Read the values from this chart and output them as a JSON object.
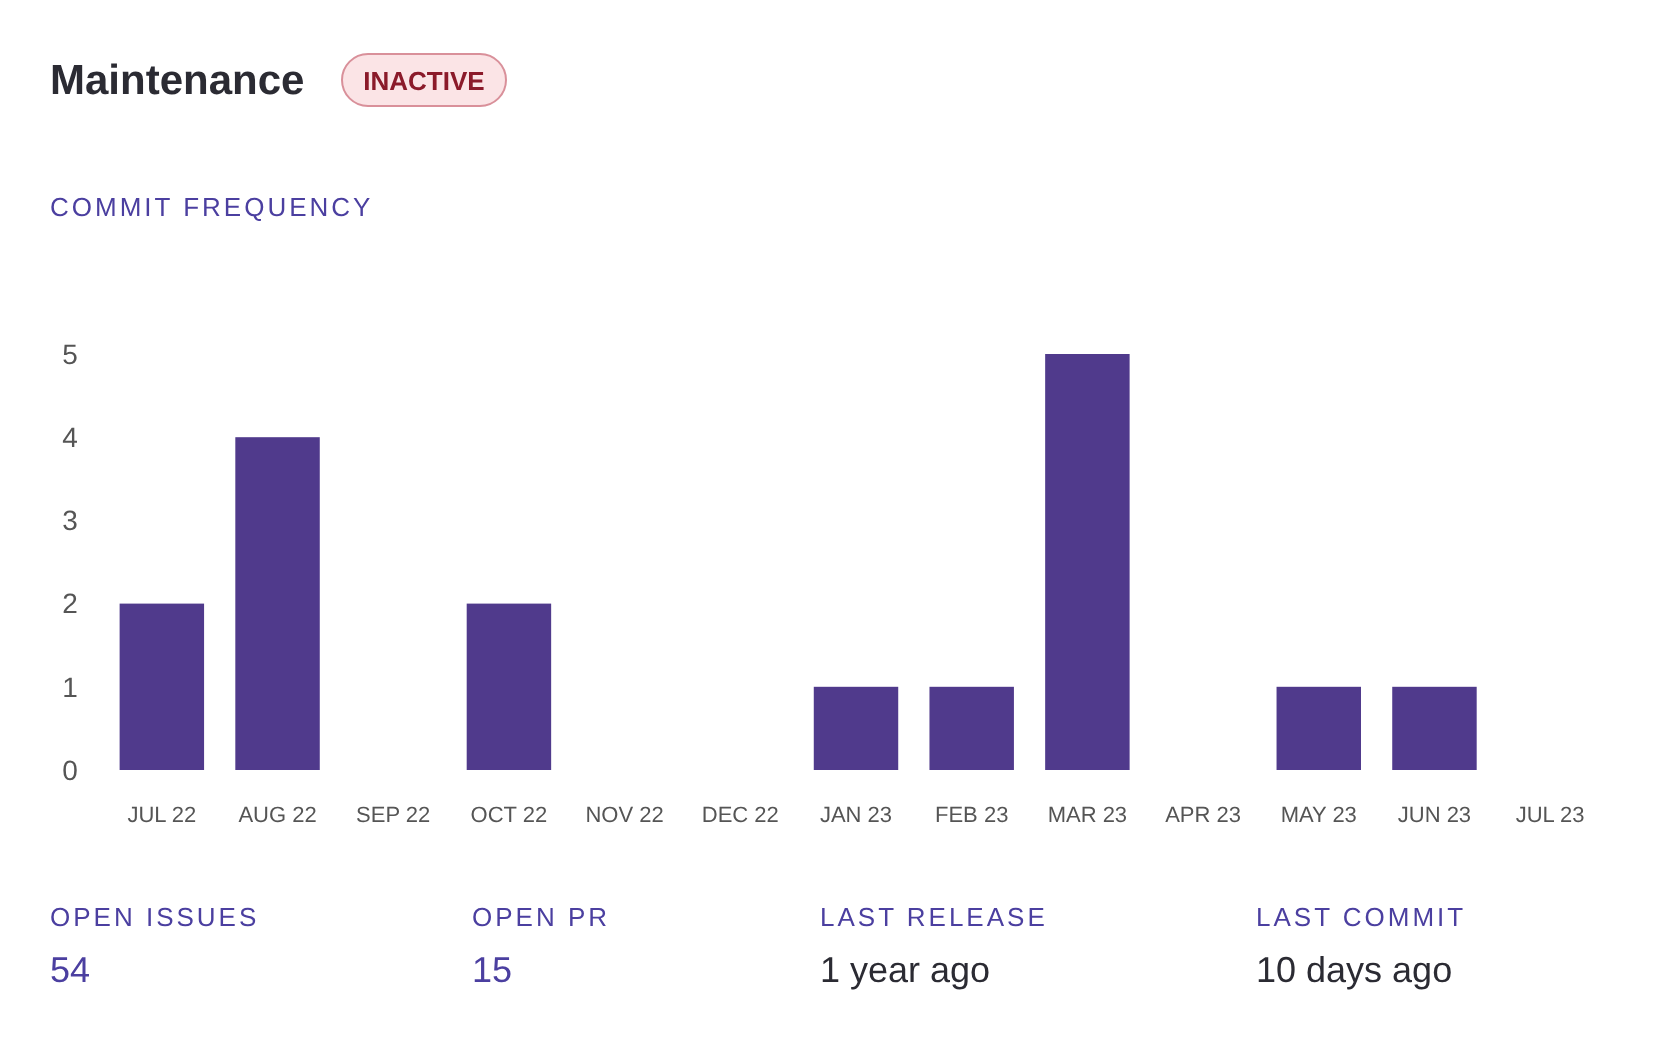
{
  "chart_data": {
    "type": "bar",
    "title": "Maintenance",
    "subtitle": "COMMIT FREQUENCY",
    "categories": [
      "JUL 22",
      "AUG 22",
      "SEP 22",
      "OCT 22",
      "NOV 22",
      "DEC 22",
      "JAN 23",
      "FEB 23",
      "MAR 23",
      "APR 23",
      "MAY 23",
      "JUN 23",
      "JUL 23"
    ],
    "values": [
      2,
      4,
      0,
      2,
      0,
      0,
      1,
      1,
      5,
      0,
      1,
      1,
      0
    ],
    "color": "#503a8c",
    "ylim": [
      0,
      5
    ],
    "yticks": [
      0,
      1,
      2,
      3,
      4,
      5
    ],
    "grid": false,
    "annotations": [
      "INACTIVE",
      "OPEN ISSUES",
      "54",
      "OPEN PR",
      "15",
      "LAST RELEASE",
      "1 year ago",
      "LAST COMMIT",
      "10 days ago"
    ]
  }
}
